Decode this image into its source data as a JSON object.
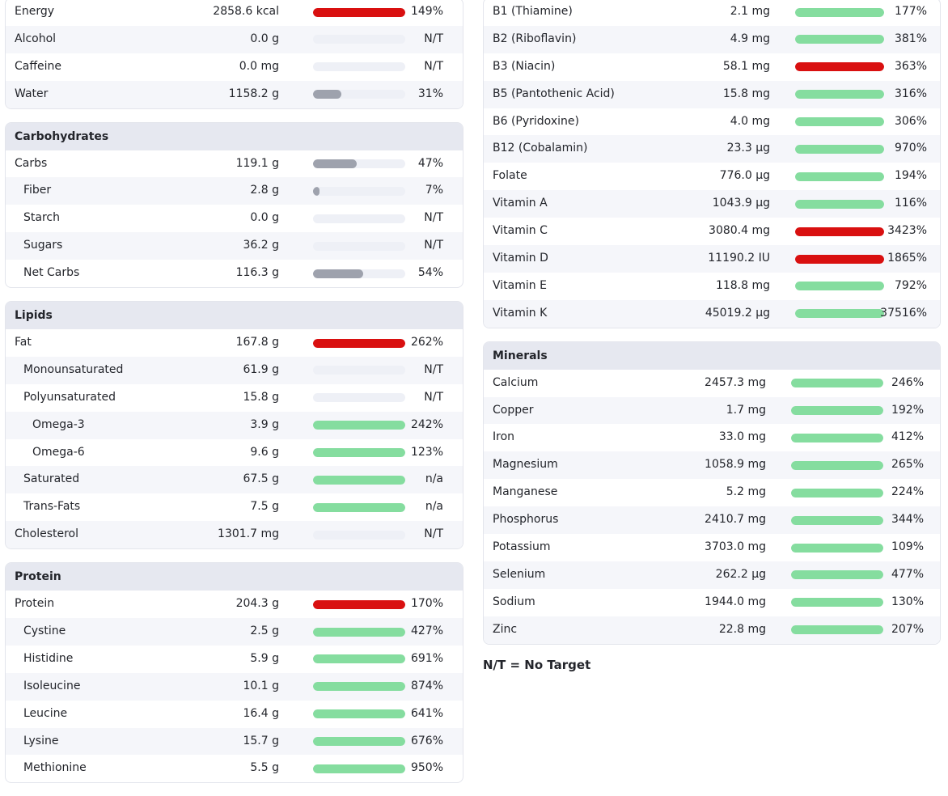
{
  "colors": {
    "over": "#d91010",
    "ok": "#85dd9f",
    "partial": "#9ea2ad",
    "track": "#eef0f6",
    "header_bg": "#e6e8f0",
    "row_alt": "#f5f6fa"
  },
  "general": {
    "title": "",
    "rows": [
      {
        "name": "Energy",
        "amount": "2858.6 kcal",
        "percent": "149%",
        "fill": 1.0,
        "color": "red",
        "indent": 0
      },
      {
        "name": "Alcohol",
        "amount": "0.0 g",
        "percent": "N/T",
        "fill": 0,
        "color": "none",
        "indent": 0
      },
      {
        "name": "Caffeine",
        "amount": "0.0 mg",
        "percent": "N/T",
        "fill": 0,
        "color": "none",
        "indent": 0
      },
      {
        "name": "Water",
        "amount": "1158.2 g",
        "percent": "31%",
        "fill": 0.31,
        "color": "gray",
        "indent": 0
      }
    ]
  },
  "carbohydrates": {
    "title": "Carbohydrates",
    "rows": [
      {
        "name": "Carbs",
        "amount": "119.1 g",
        "percent": "47%",
        "fill": 0.47,
        "color": "gray",
        "indent": 0
      },
      {
        "name": "Fiber",
        "amount": "2.8 g",
        "percent": "7%",
        "fill": 0.07,
        "color": "gray",
        "indent": 1
      },
      {
        "name": "Starch",
        "amount": "0.0 g",
        "percent": "N/T",
        "fill": 0,
        "color": "none",
        "indent": 1
      },
      {
        "name": "Sugars",
        "amount": "36.2 g",
        "percent": "N/T",
        "fill": 0,
        "color": "none",
        "indent": 1
      },
      {
        "name": "Net Carbs",
        "amount": "116.3 g",
        "percent": "54%",
        "fill": 0.54,
        "color": "gray",
        "indent": 1
      }
    ]
  },
  "lipids": {
    "title": "Lipids",
    "rows": [
      {
        "name": "Fat",
        "amount": "167.8 g",
        "percent": "262%",
        "fill": 1.0,
        "color": "red",
        "indent": 0
      },
      {
        "name": "Monounsaturated",
        "amount": "61.9 g",
        "percent": "N/T",
        "fill": 0,
        "color": "none",
        "indent": 1
      },
      {
        "name": "Polyunsaturated",
        "amount": "15.8 g",
        "percent": "N/T",
        "fill": 0,
        "color": "none",
        "indent": 1
      },
      {
        "name": "Omega-3",
        "amount": "3.9 g",
        "percent": "242%",
        "fill": 1.0,
        "color": "green",
        "indent": 2
      },
      {
        "name": "Omega-6",
        "amount": "9.6 g",
        "percent": "123%",
        "fill": 1.0,
        "color": "green",
        "indent": 2
      },
      {
        "name": "Saturated",
        "amount": "67.5 g",
        "percent": "n/a",
        "fill": 1.0,
        "color": "green",
        "indent": 1
      },
      {
        "name": "Trans-Fats",
        "amount": "7.5 g",
        "percent": "n/a",
        "fill": 1.0,
        "color": "green",
        "indent": 1
      },
      {
        "name": "Cholesterol",
        "amount": "1301.7 mg",
        "percent": "N/T",
        "fill": 0,
        "color": "none",
        "indent": 0
      }
    ]
  },
  "protein": {
    "title": "Protein",
    "rows": [
      {
        "name": "Protein",
        "amount": "204.3 g",
        "percent": "170%",
        "fill": 1.0,
        "color": "red",
        "indent": 0
      },
      {
        "name": "Cystine",
        "amount": "2.5 g",
        "percent": "427%",
        "fill": 1.0,
        "color": "green",
        "indent": 1
      },
      {
        "name": "Histidine",
        "amount": "5.9 g",
        "percent": "691%",
        "fill": 1.0,
        "color": "green",
        "indent": 1
      },
      {
        "name": "Isoleucine",
        "amount": "10.1 g",
        "percent": "874%",
        "fill": 1.0,
        "color": "green",
        "indent": 1
      },
      {
        "name": "Leucine",
        "amount": "16.4 g",
        "percent": "641%",
        "fill": 1.0,
        "color": "green",
        "indent": 1
      },
      {
        "name": "Lysine",
        "amount": "15.7 g",
        "percent": "676%",
        "fill": 1.0,
        "color": "green",
        "indent": 1
      },
      {
        "name": "Methionine",
        "amount": "5.5 g",
        "percent": "950%",
        "fill": 1.0,
        "color": "green",
        "indent": 1
      }
    ]
  },
  "vitamins": {
    "title": "",
    "rows": [
      {
        "name": "B1 (Thiamine)",
        "amount": "2.1 mg",
        "percent": "177%",
        "fill": 1.0,
        "color": "green",
        "indent": 0
      },
      {
        "name": "B2 (Riboflavin)",
        "amount": "4.9 mg",
        "percent": "381%",
        "fill": 1.0,
        "color": "green",
        "indent": 0
      },
      {
        "name": "B3 (Niacin)",
        "amount": "58.1 mg",
        "percent": "363%",
        "fill": 1.0,
        "color": "red",
        "indent": 0
      },
      {
        "name": "B5 (Pantothenic Acid)",
        "amount": "15.8 mg",
        "percent": "316%",
        "fill": 1.0,
        "color": "green",
        "indent": 0
      },
      {
        "name": "B6 (Pyridoxine)",
        "amount": "4.0 mg",
        "percent": "306%",
        "fill": 1.0,
        "color": "green",
        "indent": 0
      },
      {
        "name": "B12 (Cobalamin)",
        "amount": "23.3 µg",
        "percent": "970%",
        "fill": 1.0,
        "color": "green",
        "indent": 0
      },
      {
        "name": "Folate",
        "amount": "776.0 µg",
        "percent": "194%",
        "fill": 1.0,
        "color": "green",
        "indent": 0
      },
      {
        "name": "Vitamin A",
        "amount": "1043.9 µg",
        "percent": "116%",
        "fill": 1.0,
        "color": "green",
        "indent": 0
      },
      {
        "name": "Vitamin C",
        "amount": "3080.4 mg",
        "percent": "3423%",
        "fill": 1.0,
        "color": "red",
        "indent": 0
      },
      {
        "name": "Vitamin D",
        "amount": "11190.2 IU",
        "percent": "1865%",
        "fill": 1.0,
        "color": "red",
        "indent": 0
      },
      {
        "name": "Vitamin E",
        "amount": "118.8 mg",
        "percent": "792%",
        "fill": 1.0,
        "color": "green",
        "indent": 0
      },
      {
        "name": "Vitamin K",
        "amount": "45019.2 µg",
        "percent": "37516%",
        "fill": 1.0,
        "color": "green",
        "indent": 0
      }
    ]
  },
  "minerals": {
    "title": "Minerals",
    "rows": [
      {
        "name": "Calcium",
        "amount": "2457.3 mg",
        "percent": "246%",
        "fill": 1.0,
        "color": "green",
        "indent": 0
      },
      {
        "name": "Copper",
        "amount": "1.7 mg",
        "percent": "192%",
        "fill": 1.0,
        "color": "green",
        "indent": 0
      },
      {
        "name": "Iron",
        "amount": "33.0 mg",
        "percent": "412%",
        "fill": 1.0,
        "color": "green",
        "indent": 0
      },
      {
        "name": "Magnesium",
        "amount": "1058.9 mg",
        "percent": "265%",
        "fill": 1.0,
        "color": "green",
        "indent": 0
      },
      {
        "name": "Manganese",
        "amount": "5.2 mg",
        "percent": "224%",
        "fill": 1.0,
        "color": "green",
        "indent": 0
      },
      {
        "name": "Phosphorus",
        "amount": "2410.7 mg",
        "percent": "344%",
        "fill": 1.0,
        "color": "green",
        "indent": 0
      },
      {
        "name": "Potassium",
        "amount": "3703.0 mg",
        "percent": "109%",
        "fill": 1.0,
        "color": "green",
        "indent": 0
      },
      {
        "name": "Selenium",
        "amount": "262.2 µg",
        "percent": "477%",
        "fill": 1.0,
        "color": "green",
        "indent": 0
      },
      {
        "name": "Sodium",
        "amount": "1944.0 mg",
        "percent": "130%",
        "fill": 1.0,
        "color": "green",
        "indent": 0
      },
      {
        "name": "Zinc",
        "amount": "22.8 mg",
        "percent": "207%",
        "fill": 1.0,
        "color": "green",
        "indent": 0
      }
    ]
  },
  "note": "N/T = No Target"
}
